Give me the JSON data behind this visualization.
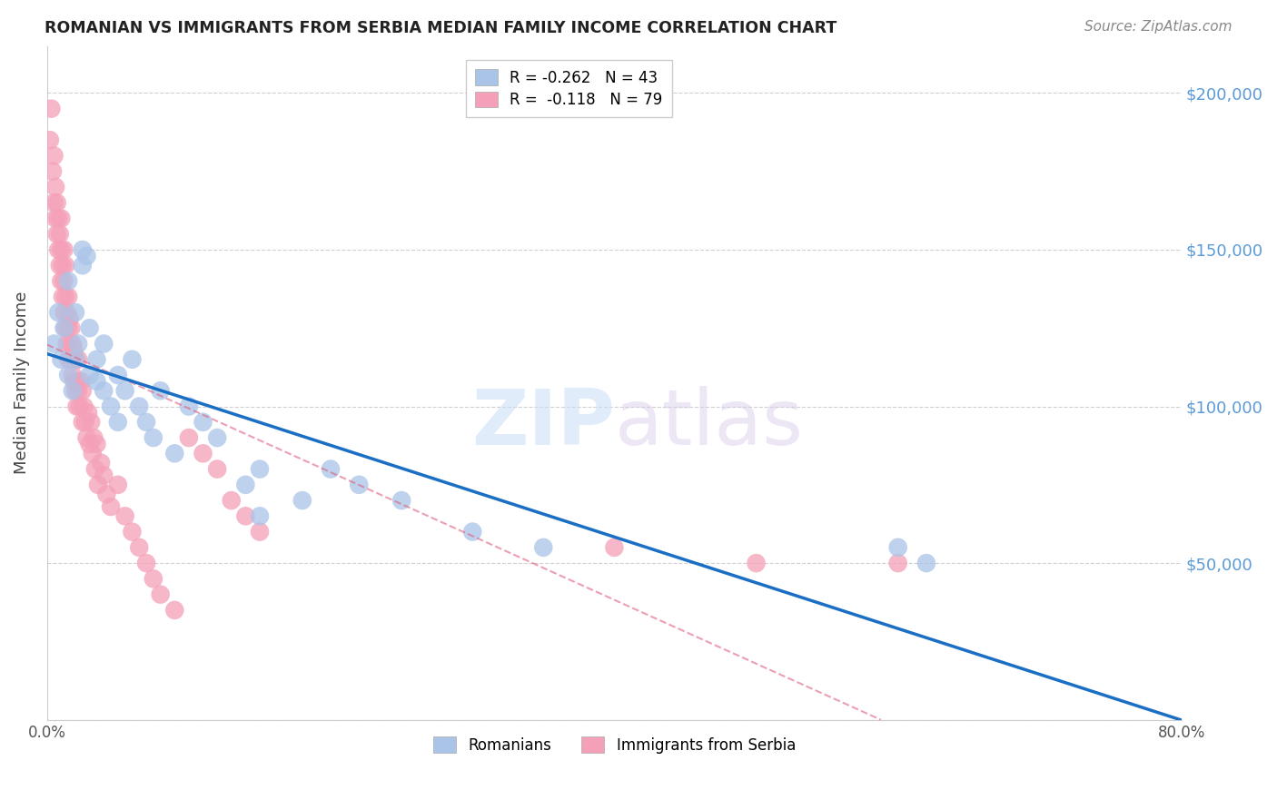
{
  "title": "ROMANIAN VS IMMIGRANTS FROM SERBIA MEDIAN FAMILY INCOME CORRELATION CHART",
  "source": "Source: ZipAtlas.com",
  "ylabel": "Median Family Income",
  "xlim": [
    0,
    0.8
  ],
  "ylim": [
    0,
    215000
  ],
  "legend1_label": "R = -0.262   N = 43",
  "legend2_label": "R =  -0.118   N = 79",
  "bottom_legend1": "Romanians",
  "bottom_legend2": "Immigrants from Serbia",
  "romanians_color": "#aac4e8",
  "serbia_color": "#f4a0b8",
  "trendline_romanians_color": "#1a6fc4",
  "trendline_serbia_color": "#e06080",
  "background_color": "#ffffff",
  "grid_color": "#d0d0d0",
  "romanians_x": [
    0.005,
    0.008,
    0.01,
    0.012,
    0.015,
    0.015,
    0.018,
    0.02,
    0.02,
    0.022,
    0.025,
    0.025,
    0.028,
    0.03,
    0.03,
    0.035,
    0.035,
    0.04,
    0.04,
    0.045,
    0.05,
    0.05,
    0.055,
    0.06,
    0.065,
    0.07,
    0.075,
    0.08,
    0.09,
    0.1,
    0.11,
    0.12,
    0.14,
    0.15,
    0.15,
    0.18,
    0.2,
    0.22,
    0.25,
    0.3,
    0.35,
    0.6,
    0.62
  ],
  "romanians_y": [
    120000,
    130000,
    115000,
    125000,
    110000,
    140000,
    105000,
    130000,
    115000,
    120000,
    145000,
    150000,
    148000,
    110000,
    125000,
    108000,
    115000,
    105000,
    120000,
    100000,
    110000,
    95000,
    105000,
    115000,
    100000,
    95000,
    90000,
    105000,
    85000,
    100000,
    95000,
    90000,
    75000,
    80000,
    65000,
    70000,
    80000,
    75000,
    70000,
    60000,
    55000,
    55000,
    50000
  ],
  "serbia_x": [
    0.002,
    0.003,
    0.004,
    0.005,
    0.005,
    0.006,
    0.006,
    0.007,
    0.007,
    0.008,
    0.008,
    0.009,
    0.009,
    0.01,
    0.01,
    0.01,
    0.011,
    0.011,
    0.012,
    0.012,
    0.012,
    0.013,
    0.013,
    0.013,
    0.014,
    0.014,
    0.015,
    0.015,
    0.015,
    0.016,
    0.016,
    0.017,
    0.017,
    0.018,
    0.018,
    0.019,
    0.019,
    0.02,
    0.02,
    0.021,
    0.021,
    0.022,
    0.022,
    0.023,
    0.024,
    0.025,
    0.025,
    0.026,
    0.027,
    0.028,
    0.029,
    0.03,
    0.031,
    0.032,
    0.033,
    0.034,
    0.035,
    0.036,
    0.038,
    0.04,
    0.042,
    0.045,
    0.05,
    0.055,
    0.06,
    0.065,
    0.07,
    0.075,
    0.08,
    0.09,
    0.1,
    0.11,
    0.12,
    0.13,
    0.14,
    0.15,
    0.4,
    0.5,
    0.6
  ],
  "serbia_y": [
    185000,
    195000,
    175000,
    165000,
    180000,
    160000,
    170000,
    155000,
    165000,
    150000,
    160000,
    145000,
    155000,
    140000,
    150000,
    160000,
    135000,
    145000,
    130000,
    140000,
    150000,
    125000,
    135000,
    145000,
    120000,
    130000,
    115000,
    125000,
    135000,
    120000,
    128000,
    115000,
    125000,
    110000,
    120000,
    108000,
    118000,
    105000,
    115000,
    108000,
    100000,
    105000,
    115000,
    100000,
    108000,
    95000,
    105000,
    100000,
    95000,
    90000,
    98000,
    88000,
    95000,
    85000,
    90000,
    80000,
    88000,
    75000,
    82000,
    78000,
    72000,
    68000,
    75000,
    65000,
    60000,
    55000,
    50000,
    45000,
    40000,
    35000,
    90000,
    85000,
    80000,
    70000,
    65000,
    60000,
    55000,
    50000,
    50000
  ]
}
